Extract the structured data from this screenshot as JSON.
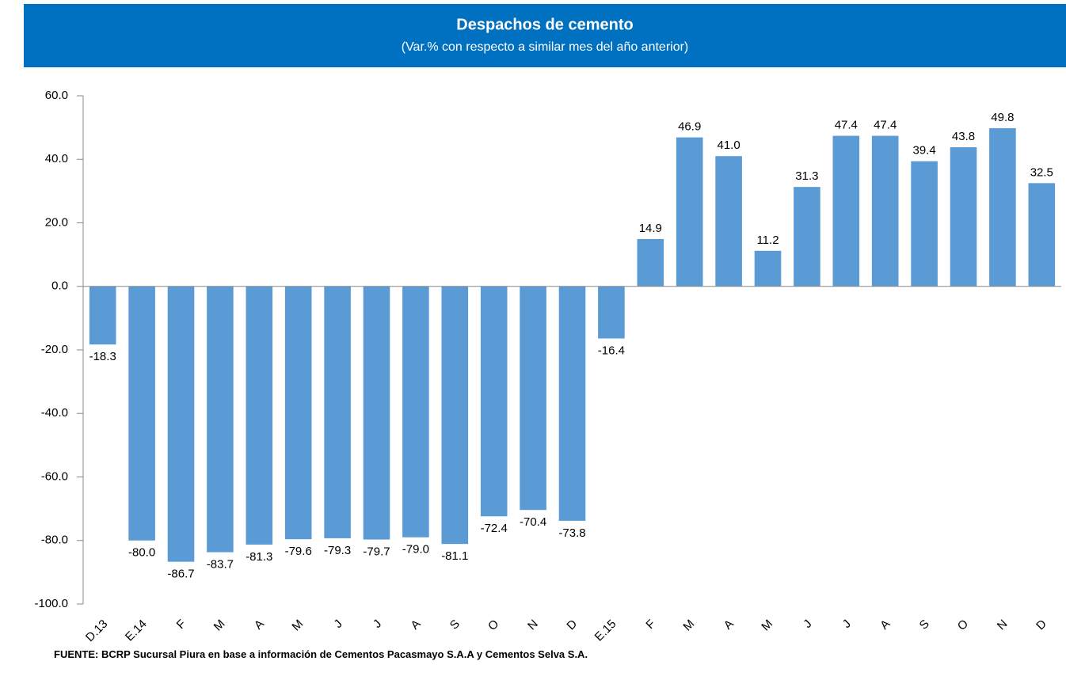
{
  "chart_data": {
    "type": "bar",
    "title": "Despachos de cemento",
    "subtitle": "(Var.% con respecto a similar mes del año anterior)",
    "categories": [
      "D.13",
      "E.14",
      "F",
      "M",
      "A",
      "M",
      "J",
      "J",
      "A",
      "S",
      "O",
      "N",
      "D",
      "E.15",
      "F",
      "M",
      "A",
      "M",
      "J",
      "J",
      "A",
      "S",
      "O",
      "N",
      "D"
    ],
    "values": [
      -18.3,
      -80.0,
      -86.7,
      -83.7,
      -81.3,
      -79.6,
      -79.3,
      -79.7,
      -79.0,
      -81.1,
      -72.4,
      -70.4,
      -73.8,
      -16.4,
      14.9,
      46.9,
      41.0,
      11.2,
      31.3,
      47.4,
      47.4,
      39.4,
      43.8,
      49.8,
      32.5
    ],
    "value_labels": [
      "-18.3",
      "-80.0",
      "-86.7",
      "-83.7",
      "-81.3",
      "-79.6",
      "-79.3",
      "-79.7",
      "-79.0",
      "-81.1",
      "-72.4",
      "-70.4",
      "-73.8",
      "-16.4",
      "14.9",
      "46.9",
      "41.0",
      "11.2",
      "31.3",
      "47.4",
      "47.4",
      "39.4",
      "43.8",
      "49.8",
      "32.5"
    ],
    "color": "#5b9bd5",
    "ylim": [
      -100,
      60
    ],
    "yticks": [
      {
        "value": -100,
        "label": "-100.0"
      },
      {
        "value": -80,
        "label": "-80.0"
      },
      {
        "value": -60,
        "label": "-60.0"
      },
      {
        "value": -40,
        "label": "-40.0"
      },
      {
        "value": -20,
        "label": "-20.0"
      },
      {
        "value": 0,
        "label": "0.0"
      },
      {
        "value": 20,
        "label": "20.0"
      },
      {
        "value": 40,
        "label": "40.0"
      },
      {
        "value": 60,
        "label": "60.0"
      }
    ],
    "source": "FUENTE: BCRP Sucursal Piura en base a información de Cementos Pacasmayo S.A.A y Cementos Selva S.A."
  }
}
